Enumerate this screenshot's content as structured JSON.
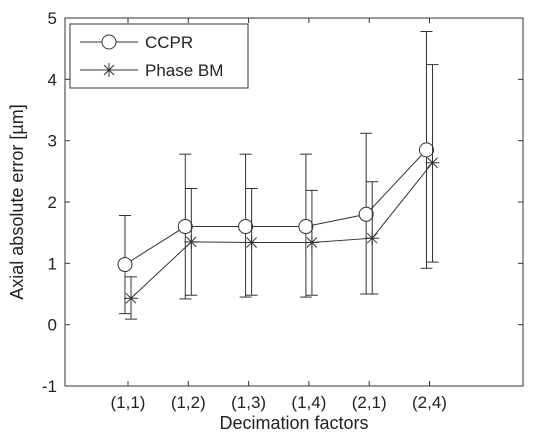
{
  "chart_data": {
    "type": "line",
    "xlabel": "Decimation factors",
    "ylabel": "Axial absolute error [µm]",
    "categories": [
      "(1,1)",
      "(1,2)",
      "(1,3)",
      "(1,4)",
      "(2,1)",
      "(2,4)"
    ],
    "ylim": [
      -1,
      5
    ],
    "yticks": [
      "-1",
      "0",
      "1",
      "2",
      "3",
      "4",
      "5"
    ],
    "grid": false,
    "legend_position": "top-left",
    "series": [
      {
        "name": "CCPR",
        "marker": "circle",
        "color": "#333333",
        "x_offset": -0.05,
        "values": [
          0.98,
          1.6,
          1.6,
          1.6,
          1.8,
          2.85
        ],
        "err_low": [
          0.18,
          0.42,
          0.45,
          0.45,
          0.5,
          0.92
        ],
        "err_high": [
          1.78,
          2.78,
          2.78,
          2.78,
          3.12,
          4.78
        ]
      },
      {
        "name": "Phase BM",
        "marker": "asterisk",
        "color": "#333333",
        "x_offset": 0.05,
        "values": [
          0.43,
          1.35,
          1.34,
          1.34,
          1.41,
          2.64
        ],
        "err_low": [
          0.09,
          0.48,
          0.48,
          0.48,
          0.5,
          1.02
        ],
        "err_high": [
          0.78,
          2.22,
          2.22,
          2.19,
          2.33,
          4.24
        ]
      }
    ]
  }
}
